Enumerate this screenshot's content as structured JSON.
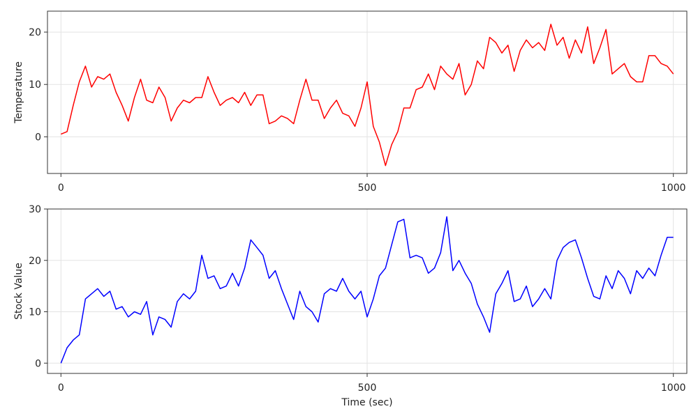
{
  "chart_data": [
    {
      "type": "line",
      "title": "",
      "xlabel": "",
      "ylabel": "Temperature",
      "xlim": [
        -22,
        1022
      ],
      "ylim": [
        -7,
        24
      ],
      "xticks": [
        0,
        500,
        1000
      ],
      "xtick_labels": [
        "0",
        "500",
        "1000"
      ],
      "yticks": [
        0,
        10,
        20
      ],
      "ytick_labels": [
        "0",
        "10",
        "20"
      ],
      "grid": true,
      "series": [
        {
          "name": "Temperature",
          "color": "#ff0000",
          "x": [
            0,
            10,
            20,
            30,
            40,
            50,
            60,
            70,
            80,
            90,
            100,
            110,
            120,
            130,
            140,
            150,
            160,
            170,
            180,
            190,
            200,
            210,
            220,
            230,
            240,
            250,
            260,
            270,
            280,
            290,
            300,
            310,
            320,
            330,
            340,
            350,
            360,
            370,
            380,
            390,
            400,
            410,
            420,
            430,
            440,
            450,
            460,
            470,
            480,
            490,
            500,
            510,
            520,
            530,
            540,
            550,
            560,
            570,
            580,
            590,
            600,
            610,
            620,
            630,
            640,
            650,
            660,
            670,
            680,
            690,
            700,
            710,
            720,
            730,
            740,
            750,
            760,
            770,
            780,
            790,
            800,
            810,
            820,
            830,
            840,
            850,
            860,
            870,
            880,
            890,
            900,
            910,
            920,
            930,
            940,
            950,
            960,
            970,
            980,
            990,
            1000
          ],
          "values": [
            0.5,
            1,
            6,
            10.5,
            13.5,
            9.5,
            11.5,
            11,
            12,
            8.5,
            6,
            3,
            7.5,
            11,
            7,
            6.5,
            9.5,
            7.5,
            3,
            5.5,
            7,
            6.5,
            7.5,
            7.5,
            11.5,
            8.5,
            6,
            7,
            7.5,
            6.5,
            8.5,
            6,
            8,
            8,
            2.5,
            3,
            4,
            3.5,
            2.5,
            7,
            11,
            7,
            7,
            3.5,
            5.5,
            7,
            4.5,
            4,
            2,
            5.5,
            10.5,
            2,
            -1,
            -5.5,
            -1.5,
            1,
            5.5,
            5.5,
            9,
            9.5,
            12,
            9,
            13.5,
            12,
            11,
            14,
            8,
            10,
            14.5,
            13,
            19,
            18,
            16,
            17.5,
            12.5,
            16.5,
            18.5,
            17,
            18,
            16.5,
            21.5,
            17.5,
            19,
            15,
            18.5,
            16,
            21,
            14,
            17,
            20.5,
            12,
            13,
            14,
            11.5,
            10.5,
            10.5,
            15.5,
            15.5,
            14,
            13.5,
            12
          ]
        }
      ]
    },
    {
      "type": "line",
      "title": "",
      "xlabel": "Time (sec)",
      "ylabel": "Stock Value",
      "xlim": [
        -22,
        1022
      ],
      "ylim": [
        -2,
        30
      ],
      "xticks": [
        0,
        500,
        1000
      ],
      "xtick_labels": [
        "0",
        "500",
        "1000"
      ],
      "yticks": [
        0,
        10,
        20,
        30
      ],
      "ytick_labels": [
        "0",
        "10",
        "20",
        "30"
      ],
      "grid": true,
      "series": [
        {
          "name": "Stock Value",
          "color": "#0000ff",
          "x": [
            0,
            10,
            20,
            30,
            40,
            50,
            60,
            70,
            80,
            90,
            100,
            110,
            120,
            130,
            140,
            150,
            160,
            170,
            180,
            190,
            200,
            210,
            220,
            230,
            240,
            250,
            260,
            270,
            280,
            290,
            300,
            310,
            320,
            330,
            340,
            350,
            360,
            370,
            380,
            390,
            400,
            410,
            420,
            430,
            440,
            450,
            460,
            470,
            480,
            490,
            500,
            510,
            520,
            530,
            540,
            550,
            560,
            570,
            580,
            590,
            600,
            610,
            620,
            630,
            640,
            650,
            660,
            670,
            680,
            690,
            700,
            710,
            720,
            730,
            740,
            750,
            760,
            770,
            780,
            790,
            800,
            810,
            820,
            830,
            840,
            850,
            860,
            870,
            880,
            890,
            900,
            910,
            920,
            930,
            940,
            950,
            960,
            970,
            980,
            990,
            1000
          ],
          "values": [
            0,
            3,
            4.5,
            5.5,
            12.5,
            13.5,
            14.5,
            13,
            14,
            10.5,
            11,
            9,
            10,
            9.5,
            12,
            5.5,
            9,
            8.5,
            7,
            12,
            13.5,
            12.5,
            14,
            21,
            16.5,
            17,
            14.5,
            15,
            17.5,
            15,
            18.5,
            24,
            22.5,
            21,
            16.5,
            18,
            14.5,
            11.5,
            8.5,
            14,
            11,
            10,
            8,
            13.5,
            14.5,
            14,
            16.5,
            14,
            12.5,
            14,
            9,
            12.5,
            17,
            18.5,
            23,
            27.5,
            28,
            20.5,
            21,
            20.5,
            17.5,
            18.5,
            21.5,
            28.5,
            18,
            20,
            17.5,
            15.5,
            11.5,
            9,
            6,
            13.5,
            15.5,
            18,
            12,
            12.5,
            15,
            11,
            12.5,
            14.5,
            12.5,
            20,
            22.5,
            23.5,
            24,
            20.5,
            16.5,
            13,
            12.5,
            17,
            14.5,
            18,
            16.5,
            13.5,
            18,
            16.5,
            18.5,
            17,
            21,
            24.5,
            24.5
          ]
        }
      ]
    }
  ]
}
